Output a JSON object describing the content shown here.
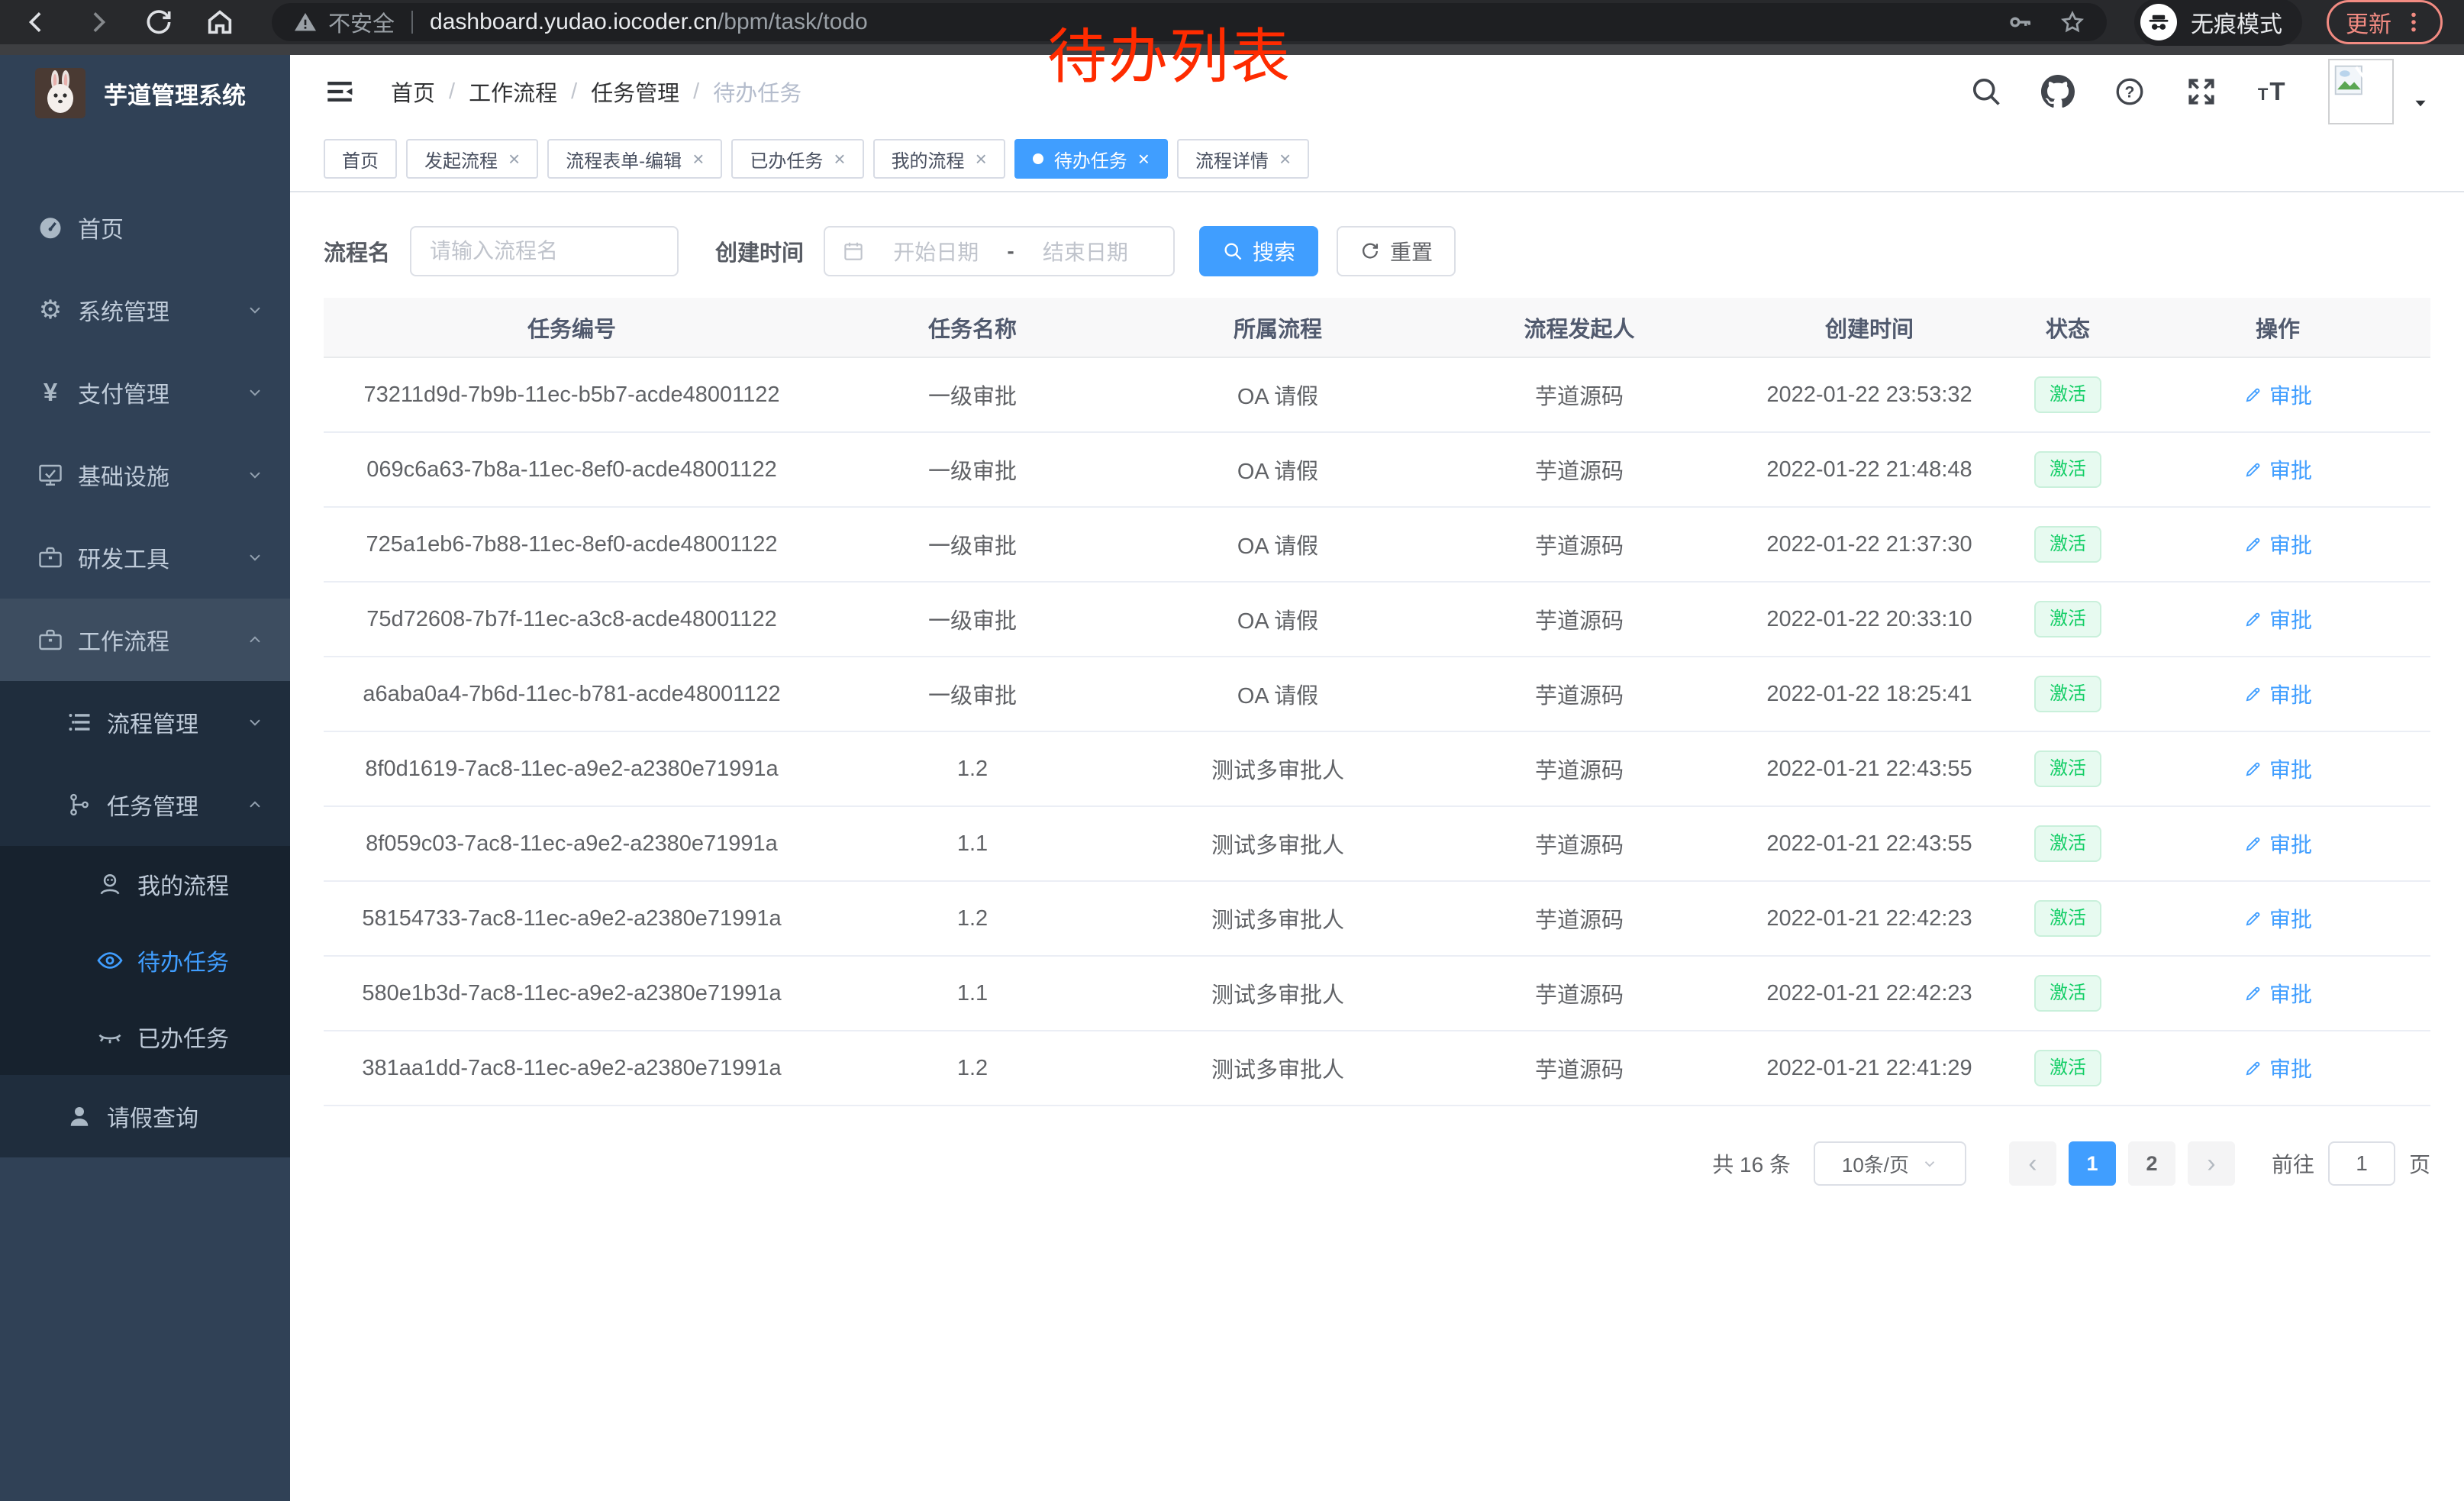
{
  "browser": {
    "security_label": "不安全",
    "url_host": "dashboard.yudao.iocoder.cn",
    "url_path": "/bpm/task/todo",
    "incognito_label": "无痕模式",
    "update_label": "更新"
  },
  "annotation": {
    "text": "待办列表",
    "color": "#fe2b00"
  },
  "sidebar": {
    "logo_title": "芋道管理系统",
    "items": [
      {
        "key": "home",
        "label": "首页",
        "icon": "dashboard-icon",
        "level": 1
      },
      {
        "key": "system",
        "label": "系统管理",
        "icon": "gear-icon",
        "level": 1,
        "chevron": "down"
      },
      {
        "key": "payment",
        "label": "支付管理",
        "icon": "yen-icon",
        "level": 1,
        "chevron": "down"
      },
      {
        "key": "infrastructure",
        "label": "基础设施",
        "icon": "monitor-icon",
        "level": 1,
        "chevron": "down"
      },
      {
        "key": "dev-tools",
        "label": "研发工具",
        "icon": "briefcase-icon",
        "level": 1,
        "chevron": "down"
      },
      {
        "key": "workflow",
        "label": "工作流程",
        "icon": "briefcase-icon",
        "level": 1,
        "chevron": "up",
        "open": true
      },
      {
        "key": "process-mgmt",
        "label": "流程管理",
        "icon": "list-icon",
        "level": 2,
        "chevron": "down"
      },
      {
        "key": "task-mgmt",
        "label": "任务管理",
        "icon": "tree-icon",
        "level": 2,
        "chevron": "up",
        "open": true
      },
      {
        "key": "my-process",
        "label": "我的流程",
        "icon": "user-icon",
        "level": 3
      },
      {
        "key": "todo-tasks",
        "label": "待办任务",
        "icon": "eye-open-icon",
        "level": 3,
        "active": true
      },
      {
        "key": "done-tasks",
        "label": "已办任务",
        "icon": "eye-closed-icon",
        "level": 3
      },
      {
        "key": "leave-query",
        "label": "请假查询",
        "icon": "person-icon",
        "level": 2
      }
    ]
  },
  "header": {
    "breadcrumb": [
      "首页",
      "工作流程",
      "任务管理",
      "待办任务"
    ],
    "icons": [
      "search-icon",
      "github-icon",
      "help-icon",
      "fullscreen-icon",
      "font-size-icon",
      "avatar",
      "caret-down-icon"
    ]
  },
  "tabs": [
    {
      "key": "home",
      "label": "首页",
      "closable": false,
      "active": false
    },
    {
      "key": "start-process",
      "label": "发起流程",
      "closable": true,
      "active": false
    },
    {
      "key": "form-edit",
      "label": "流程表单-编辑",
      "closable": true,
      "active": false
    },
    {
      "key": "done-tasks",
      "label": "已办任务",
      "closable": true,
      "active": false
    },
    {
      "key": "my-process",
      "label": "我的流程",
      "closable": true,
      "active": false
    },
    {
      "key": "todo-tasks",
      "label": "待办任务",
      "closable": true,
      "active": true
    },
    {
      "key": "process-detail",
      "label": "流程详情",
      "closable": true,
      "active": false
    }
  ],
  "filters": {
    "name_label": "流程名",
    "name_placeholder": "请输入流程名",
    "name_value": "",
    "time_label": "创建时间",
    "start_placeholder": "开始日期",
    "range_separator": "-",
    "end_placeholder": "结束日期",
    "search_label": "搜索",
    "reset_label": "重置"
  },
  "table": {
    "columns": [
      "任务编号",
      "任务名称",
      "所属流程",
      "流程发起人",
      "创建时间",
      "状态",
      "操作"
    ],
    "rows": [
      {
        "id": "73211d9d-7b9b-11ec-b5b7-acde48001122",
        "name": "一级审批",
        "process": "OA 请假",
        "starter": "芋道源码",
        "created": "2022-01-22 23:53:32",
        "status": "激活",
        "action": "审批"
      },
      {
        "id": "069c6a63-7b8a-11ec-8ef0-acde48001122",
        "name": "一级审批",
        "process": "OA 请假",
        "starter": "芋道源码",
        "created": "2022-01-22 21:48:48",
        "status": "激活",
        "action": "审批"
      },
      {
        "id": "725a1eb6-7b88-11ec-8ef0-acde48001122",
        "name": "一级审批",
        "process": "OA 请假",
        "starter": "芋道源码",
        "created": "2022-01-22 21:37:30",
        "status": "激活",
        "action": "审批"
      },
      {
        "id": "75d72608-7b7f-11ec-a3c8-acde48001122",
        "name": "一级审批",
        "process": "OA 请假",
        "starter": "芋道源码",
        "created": "2022-01-22 20:33:10",
        "status": "激活",
        "action": "审批"
      },
      {
        "id": "a6aba0a4-7b6d-11ec-b781-acde48001122",
        "name": "一级审批",
        "process": "OA 请假",
        "starter": "芋道源码",
        "created": "2022-01-22 18:25:41",
        "status": "激活",
        "action": "审批"
      },
      {
        "id": "8f0d1619-7ac8-11ec-a9e2-a2380e71991a",
        "name": "1.2",
        "process": "测试多审批人",
        "starter": "芋道源码",
        "created": "2022-01-21 22:43:55",
        "status": "激活",
        "action": "审批"
      },
      {
        "id": "8f059c03-7ac8-11ec-a9e2-a2380e71991a",
        "name": "1.1",
        "process": "测试多审批人",
        "starter": "芋道源码",
        "created": "2022-01-21 22:43:55",
        "status": "激活",
        "action": "审批"
      },
      {
        "id": "58154733-7ac8-11ec-a9e2-a2380e71991a",
        "name": "1.2",
        "process": "测试多审批人",
        "starter": "芋道源码",
        "created": "2022-01-21 22:42:23",
        "status": "激活",
        "action": "审批"
      },
      {
        "id": "580e1b3d-7ac8-11ec-a9e2-a2380e71991a",
        "name": "1.1",
        "process": "测试多审批人",
        "starter": "芋道源码",
        "created": "2022-01-21 22:42:23",
        "status": "激活",
        "action": "审批"
      },
      {
        "id": "381aa1dd-7ac8-11ec-a9e2-a2380e71991a",
        "name": "1.2",
        "process": "测试多审批人",
        "starter": "芋道源码",
        "created": "2022-01-21 22:41:29",
        "status": "激活",
        "action": "审批"
      }
    ]
  },
  "pagination": {
    "total_label": "共 16 条",
    "page_size_label": "10条/页",
    "pages": [
      "1",
      "2"
    ],
    "active_page": "1",
    "goto_label": "前往",
    "goto_value": "1",
    "goto_suffix": "页"
  },
  "colors": {
    "accent": "#409eff",
    "success_text": "#13ce66",
    "success_bg": "#e7faf0",
    "sidebar_bg": "#304156",
    "submenu_bg": "#1f2d3d",
    "annotation": "#fe2b00",
    "update_button": "#f28b82"
  }
}
